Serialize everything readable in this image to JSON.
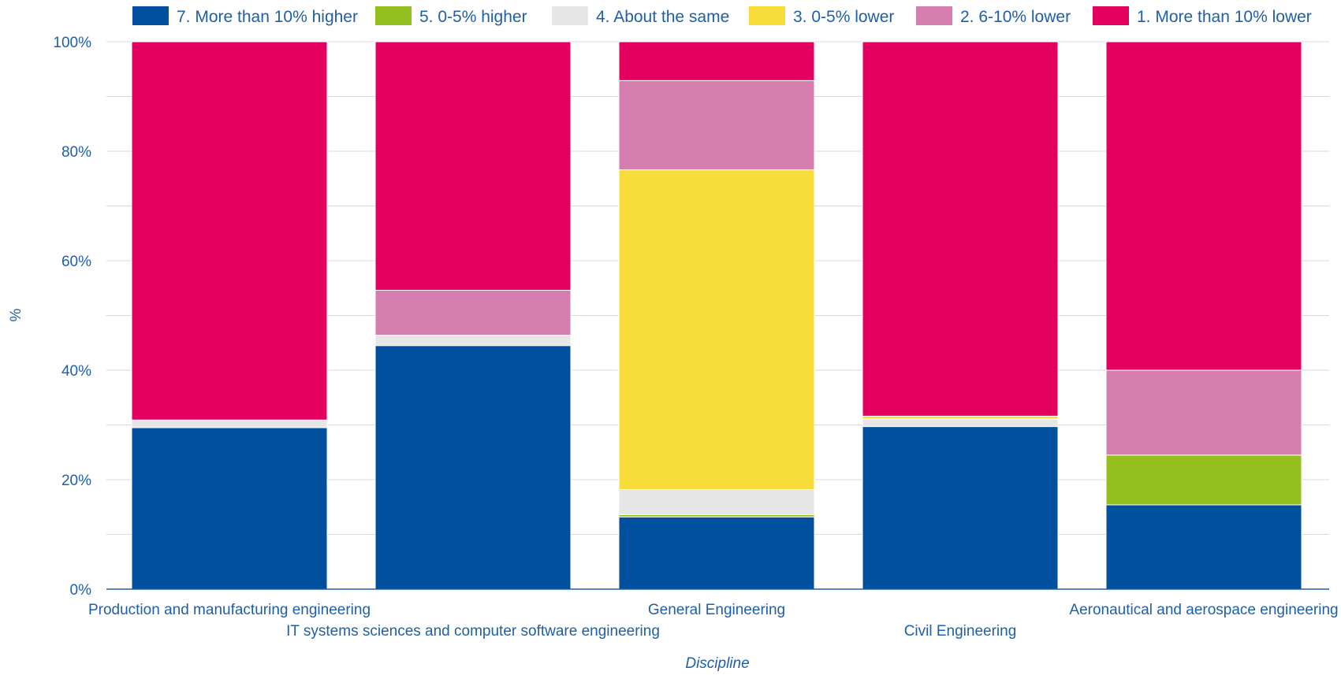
{
  "chart_data": {
    "type": "bar",
    "stacked": true,
    "categories": [
      "Production and manufacturing engineering",
      "IT systems sciences and computer software engineering",
      "General Engineering",
      "Civil Engineering",
      "Aeronautical and aerospace engineering"
    ],
    "xlabel": "Discipline",
    "ylabel": "%",
    "ylim": [
      0,
      100
    ],
    "yticks": [
      "0%",
      "20%",
      "40%",
      "60%",
      "80%",
      "100%"
    ],
    "grid": true,
    "legend_position": "top",
    "series": [
      {
        "name": "7. More than 10% higher",
        "color": "#00509e",
        "values": [
          29.5,
          44.5,
          13.2,
          29.7,
          15.4
        ]
      },
      {
        "name": "5. 0-5% higher",
        "color": "#93c01f",
        "values": [
          0,
          0,
          0.4,
          0,
          9.1
        ]
      },
      {
        "name": "4. About the same",
        "color": "#e6e6e6",
        "values": [
          1.4,
          1.9,
          4.6,
          1.4,
          0
        ]
      },
      {
        "name": "3. 0-5% lower",
        "color": "#f7dc3a",
        "values": [
          0,
          0,
          58.4,
          0.5,
          0
        ]
      },
      {
        "name": "2. 6-10% lower",
        "color": "#d67daf",
        "values": [
          0,
          8.2,
          16.3,
          0,
          15.5
        ]
      },
      {
        "name": "1. More than 10% lower",
        "color": "#e4005f",
        "values": [
          69.1,
          45.4,
          7.1,
          68.4,
          60.0
        ]
      }
    ]
  }
}
